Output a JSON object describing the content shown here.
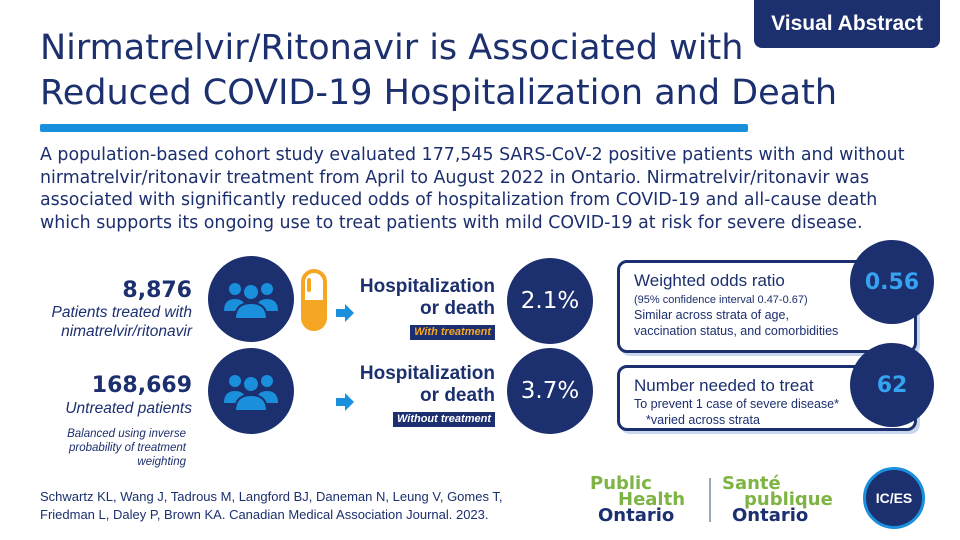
{
  "badge": "Visual Abstract",
  "title": {
    "line1": "Nirmatrelvir/Ritonavir is Associated with",
    "line2": "Reduced COVID-19 Hospitalization and Death"
  },
  "summary": "A population-based cohort study evaluated 177,545 SARS-CoV-2 positive patients with and without nirmatrelvir/ritonavir treatment from April to August 2022 in Ontario. Nirmatrelvir/ritonavir was associated with significantly reduced odds of hospitalization from COVID-19 and all-cause death which supports its ongoing use to treat patients with mild COVID-19 at risk for severe disease.",
  "groups": [
    {
      "count": "8,876",
      "label_line1": "Patients treated with",
      "label_line2": "nimatrelvir/ritonavir",
      "outcome_line1": "Hospitalization",
      "outcome_line2": "or death",
      "tag": "With treatment",
      "percent": "2.1%"
    },
    {
      "count": "168,669",
      "label_line1": "Untreated patients",
      "outcome_line1": "Hospitalization",
      "outcome_line2": "or death",
      "tag": "Without treatment",
      "percent": "3.7%"
    }
  ],
  "note": {
    "line1": "Balanced using inverse",
    "line2": "probability of treatment",
    "line3": "weighting"
  },
  "odds_ratio": {
    "heading": "Weighted odds ratio",
    "ci": "(95% confidence interval 0.47-0.67)",
    "line1": "Similar across strata of age,",
    "line2": "vaccination status, and comorbidities",
    "value": "0.56"
  },
  "nnt": {
    "heading": "Number needed to treat",
    "line1": "To prevent 1 case of severe disease*",
    "line2": "*varied across strata",
    "value": "62"
  },
  "citation": {
    "line1": "Schwartz KL, Wang J, Tadrous M, Langford BJ, Daneman N, Leung V, Gomes T,",
    "line2": "Friedman L, Daley P, Brown KA. Canadian Medical Association Journal.  2023."
  },
  "logos": {
    "pho_en_1": "Public",
    "pho_en_2": "Health",
    "pho_en_3": "Ontario",
    "pho_fr_1": "Santé",
    "pho_fr_2": "publique",
    "pho_fr_3": "Ontario",
    "ices": "IC/ES"
  },
  "colors": {
    "navy": "#1c2f6e",
    "blue": "#1a8fdc",
    "orange": "#f5a623",
    "green": "#7db443"
  },
  "icons": [
    "people-group-icon",
    "pill-capsule-icon",
    "arrow-right-icon"
  ]
}
